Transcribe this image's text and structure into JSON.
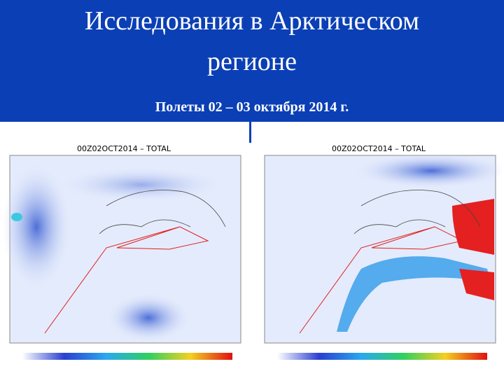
{
  "slide": {
    "title_line1": "Исследования в Арктическом",
    "title_line2": "регионе",
    "subtitle": "Полеты 02 – 03 октября 2014 г."
  },
  "maps": [
    {
      "title": "00Z02OCT2014 – TOTAL"
    },
    {
      "title": "00Z02OCT2014 – TOTAL"
    }
  ]
}
